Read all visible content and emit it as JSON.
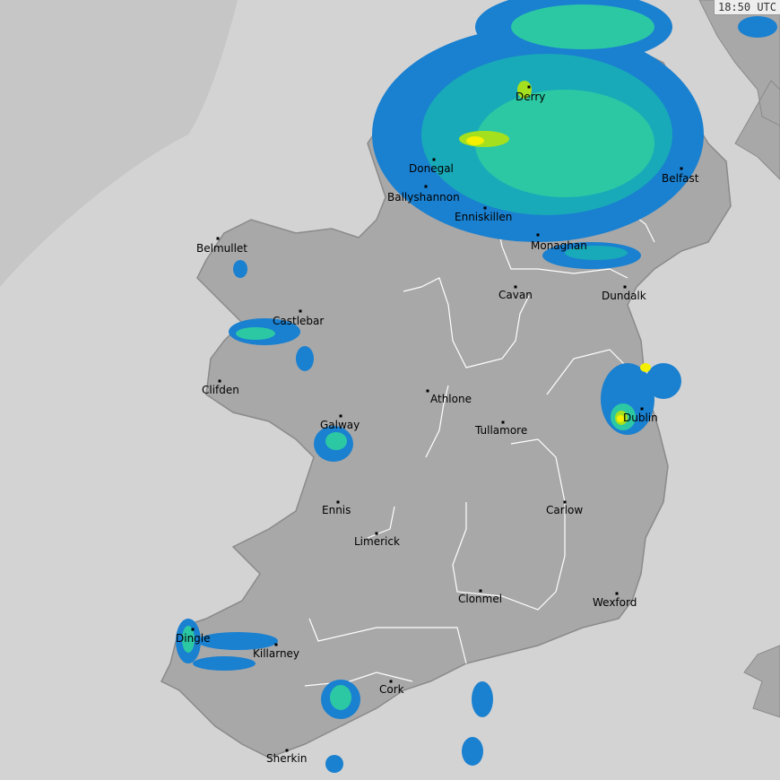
{
  "timestamp": "18:50 UTC",
  "colors": {
    "sea": "#d3d3d3",
    "out_of_range": "#c6c6c6",
    "land": "#a8a8a8",
    "coastline": "#8a8a8a",
    "rivers_borders": "#ffffff",
    "rain_light": "#1a80d0",
    "rain_moderate": "#18aab8",
    "rain_medium": "#2cc8a4",
    "rain_heavy": "#a4e01e",
    "rain_very_heavy": "#f4f000"
  },
  "cities": [
    {
      "name": "Derry"
    },
    {
      "name": "Donegal"
    },
    {
      "name": "Ballyshannon"
    },
    {
      "name": "Enniskillen"
    },
    {
      "name": "Belfast"
    },
    {
      "name": "Monaghan"
    },
    {
      "name": "Belmullet"
    },
    {
      "name": "Cavan"
    },
    {
      "name": "Dundalk"
    },
    {
      "name": "Castlebar"
    },
    {
      "name": "Clifden"
    },
    {
      "name": "Athlone"
    },
    {
      "name": "Galway"
    },
    {
      "name": "Dublin"
    },
    {
      "name": "Tullamore"
    },
    {
      "name": "Ennis"
    },
    {
      "name": "Carlow"
    },
    {
      "name": "Limerick"
    },
    {
      "name": "Clonmel"
    },
    {
      "name": "Wexford"
    },
    {
      "name": "Dingle"
    },
    {
      "name": "Killarney"
    },
    {
      "name": "Cork"
    },
    {
      "name": "Sherkin"
    }
  ]
}
